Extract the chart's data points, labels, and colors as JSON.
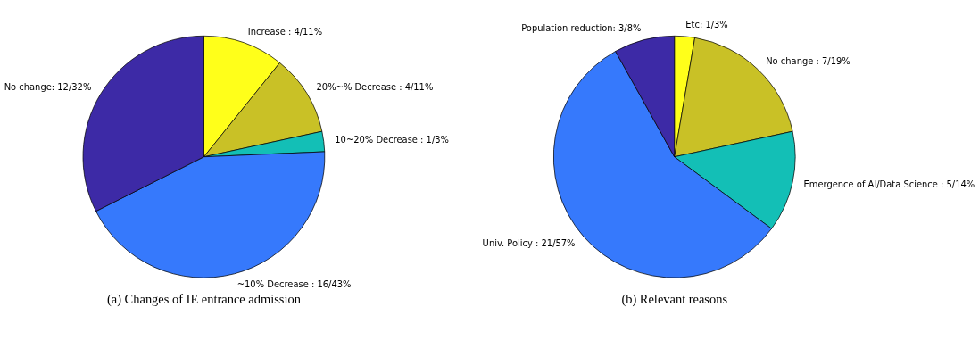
{
  "chart_data": [
    {
      "type": "pie",
      "title": "(a) Changes of IE entrance admission",
      "legend": false,
      "categories": [
        "Increase : 4/11%",
        "20%~% Decrease : 4/11%",
        "10~20% Decrease : 1/3%",
        "~10% Decrease : 16/43%",
        "No change: 12/32%"
      ],
      "values": [
        4,
        4,
        1,
        16,
        12
      ],
      "colors": [
        "#ffff1a",
        "#c9c126",
        "#13bfb6",
        "#3679fc",
        "#3d2aa6"
      ]
    },
    {
      "type": "pie",
      "title": "(b) Relevant reasons",
      "legend": false,
      "categories": [
        "Etc: 1/3%",
        "No change : 7/19%",
        "Emergence of AI/Data Science : 5/14%",
        "Univ. Policy : 21/57%",
        "Population reduction: 3/8%"
      ],
      "values": [
        1,
        7,
        5,
        21,
        3
      ],
      "colors": [
        "#ffff1a",
        "#c9c126",
        "#13bfb6",
        "#3679fc",
        "#3d2aa6"
      ]
    }
  ]
}
